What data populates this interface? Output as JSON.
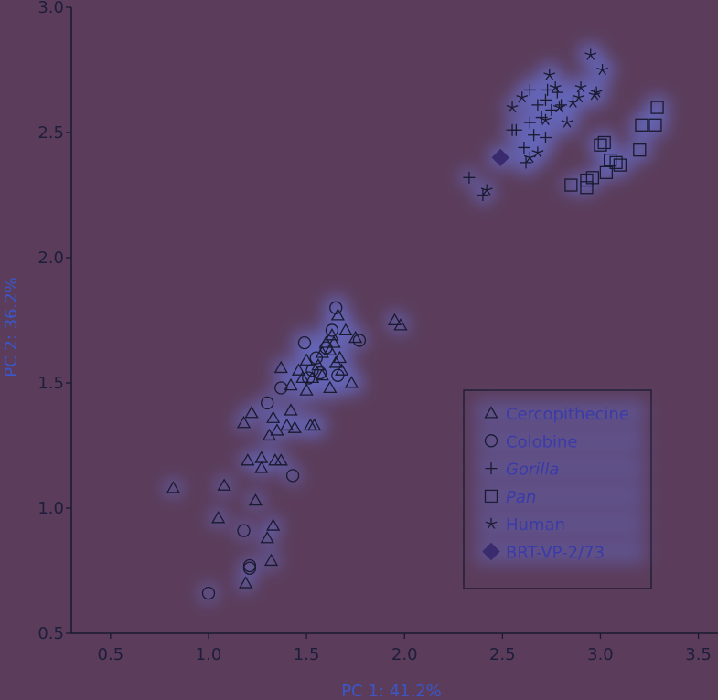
{
  "chart_data": {
    "type": "scatter",
    "title": "",
    "xlabel": "PC 1: 41.2%",
    "ylabel": "PC 2: 36.2%",
    "xlim": [
      0.3,
      3.6
    ],
    "ylim": [
      0.5,
      3.0
    ],
    "xticks": [
      "0.5",
      "1.0",
      "1.5",
      "2.0",
      "2.5",
      "3.0",
      "3.5"
    ],
    "yticks": [
      "0.5",
      "1.0",
      "1.5",
      "2.0",
      "2.5",
      "3.0"
    ],
    "grid": false,
    "legend_position": "bottom-right",
    "series": [
      {
        "name": "Cercopithecine",
        "marker": "triangle",
        "points": [
          [
            0.82,
            1.08
          ],
          [
            1.05,
            0.96
          ],
          [
            1.08,
            1.09
          ],
          [
            1.18,
            1.34
          ],
          [
            1.22,
            1.38
          ],
          [
            1.2,
            1.19
          ],
          [
            1.24,
            1.03
          ],
          [
            1.27,
            1.2
          ],
          [
            1.27,
            1.16
          ],
          [
            1.3,
            0.88
          ],
          [
            1.33,
            0.93
          ],
          [
            1.32,
            0.79
          ],
          [
            1.19,
            0.7
          ],
          [
            1.31,
            1.29
          ],
          [
            1.33,
            1.36
          ],
          [
            1.34,
            1.19
          ],
          [
            1.37,
            1.19
          ],
          [
            1.35,
            1.31
          ],
          [
            1.4,
            1.33
          ],
          [
            1.42,
            1.39
          ],
          [
            1.44,
            1.32
          ],
          [
            1.37,
            1.56
          ],
          [
            1.42,
            1.49
          ],
          [
            1.46,
            1.55
          ],
          [
            1.48,
            1.52
          ],
          [
            1.5,
            1.47
          ],
          [
            1.52,
            1.33
          ],
          [
            1.54,
            1.33
          ],
          [
            1.5,
            1.59
          ],
          [
            1.53,
            1.52
          ],
          [
            1.56,
            1.57
          ],
          [
            1.58,
            1.62
          ],
          [
            1.6,
            1.66
          ],
          [
            1.62,
            1.63
          ],
          [
            1.65,
            1.58
          ],
          [
            1.67,
            1.6
          ],
          [
            1.63,
            1.69
          ],
          [
            1.66,
            1.77
          ],
          [
            1.7,
            1.71
          ],
          [
            1.73,
            1.5
          ],
          [
            1.75,
            1.68
          ],
          [
            1.62,
            1.48
          ],
          [
            1.68,
            1.55
          ],
          [
            1.58,
            1.53
          ],
          [
            1.64,
            1.66
          ],
          [
            1.95,
            1.75
          ],
          [
            1.98,
            1.73
          ]
        ]
      },
      {
        "name": "Colobine",
        "marker": "circle",
        "points": [
          [
            1.0,
            0.66
          ],
          [
            1.18,
            0.91
          ],
          [
            1.21,
            0.76
          ],
          [
            1.21,
            0.77
          ],
          [
            1.3,
            1.42
          ],
          [
            1.37,
            1.48
          ],
          [
            1.43,
            1.13
          ],
          [
            1.49,
            1.66
          ],
          [
            1.51,
            1.52
          ],
          [
            1.53,
            1.55
          ],
          [
            1.55,
            1.6
          ],
          [
            1.57,
            1.54
          ],
          [
            1.6,
            1.64
          ],
          [
            1.63,
            1.71
          ],
          [
            1.65,
            1.8
          ],
          [
            1.66,
            1.53
          ],
          [
            1.77,
            1.67
          ]
        ]
      },
      {
        "name": "Gorilla",
        "marker": "plus",
        "points": [
          [
            2.33,
            2.32
          ],
          [
            2.4,
            2.25
          ],
          [
            2.55,
            2.51
          ],
          [
            2.57,
            2.51
          ],
          [
            2.61,
            2.44
          ],
          [
            2.62,
            2.38
          ],
          [
            2.64,
            2.67
          ],
          [
            2.64,
            2.54
          ],
          [
            2.66,
            2.49
          ],
          [
            2.68,
            2.61
          ],
          [
            2.7,
            2.56
          ],
          [
            2.72,
            2.48
          ],
          [
            2.73,
            2.67
          ],
          [
            2.75,
            2.59
          ],
          [
            2.78,
            2.66
          ],
          [
            2.8,
            2.61
          ],
          [
            2.72,
            2.63
          ]
        ]
      },
      {
        "name": "Pan",
        "marker": "square",
        "points": [
          [
            2.85,
            2.29
          ],
          [
            2.93,
            2.28
          ],
          [
            2.93,
            2.31
          ],
          [
            2.96,
            2.32
          ],
          [
            3.0,
            2.45
          ],
          [
            3.02,
            2.46
          ],
          [
            3.03,
            2.34
          ],
          [
            3.05,
            2.39
          ],
          [
            3.08,
            2.38
          ],
          [
            3.1,
            2.37
          ],
          [
            3.2,
            2.43
          ],
          [
            3.21,
            2.53
          ],
          [
            3.28,
            2.53
          ],
          [
            3.29,
            2.6
          ]
        ]
      },
      {
        "name": "Human",
        "marker": "star",
        "points": [
          [
            2.42,
            2.27
          ],
          [
            2.55,
            2.6
          ],
          [
            2.6,
            2.64
          ],
          [
            2.64,
            2.4
          ],
          [
            2.68,
            2.42
          ],
          [
            2.72,
            2.55
          ],
          [
            2.74,
            2.73
          ],
          [
            2.77,
            2.68
          ],
          [
            2.79,
            2.6
          ],
          [
            2.83,
            2.54
          ],
          [
            2.86,
            2.62
          ],
          [
            2.89,
            2.64
          ],
          [
            2.9,
            2.68
          ],
          [
            2.95,
            2.81
          ],
          [
            2.97,
            2.65
          ],
          [
            2.98,
            2.66
          ],
          [
            3.01,
            2.75
          ]
        ]
      },
      {
        "name": "BRT-VP-2/73",
        "marker": "diamond",
        "color": "#3a2a6e",
        "points": [
          [
            2.49,
            2.4
          ]
        ]
      }
    ]
  },
  "colors": {
    "background": "#5b3d5b",
    "axis": "#1a1a30",
    "glow": "#6a7ae8",
    "highlight_marker": "#3a2a6e"
  }
}
